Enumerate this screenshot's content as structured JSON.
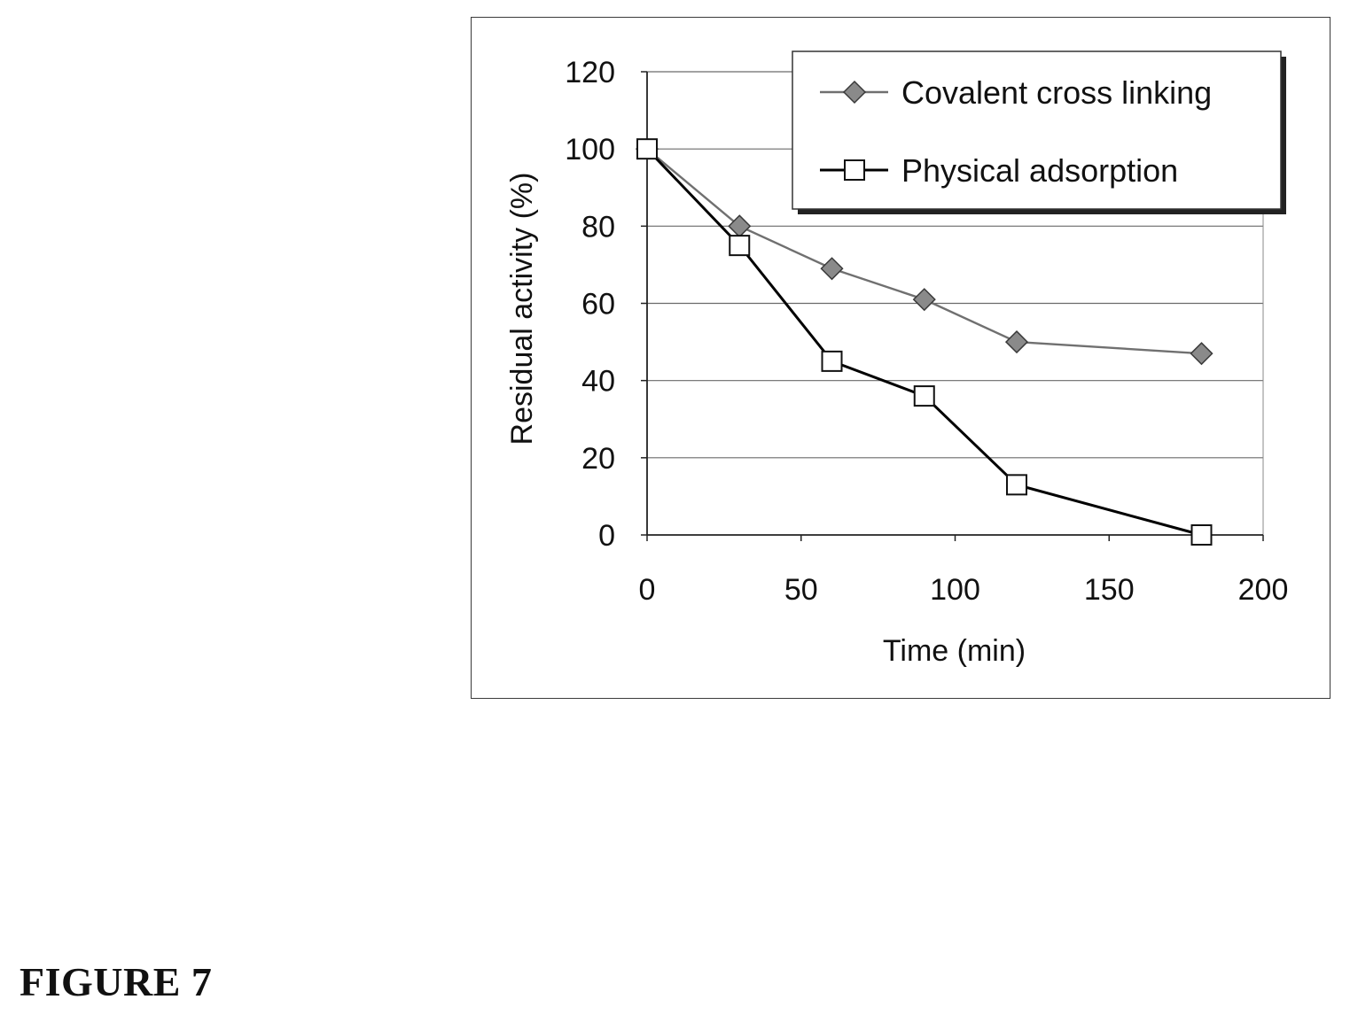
{
  "figure_caption": "FIGURE 7",
  "chart_data": {
    "type": "line",
    "title": "",
    "xlabel": "Time (min)",
    "ylabel": "Residual activity (%)",
    "xlim": [
      0,
      200
    ],
    "ylim": [
      0,
      120
    ],
    "xticks": [
      0,
      50,
      100,
      150,
      200
    ],
    "yticks": [
      0,
      20,
      40,
      60,
      80,
      100,
      120
    ],
    "grid": "horizontal",
    "legend_position": "top-right",
    "series": [
      {
        "name": "Covalent cross linking",
        "marker": "diamond",
        "color": "#707070",
        "x": [
          0,
          30,
          60,
          90,
          120,
          180
        ],
        "y": [
          100,
          80,
          69,
          61,
          50,
          47
        ]
      },
      {
        "name": "Physical adsorption",
        "marker": "square",
        "color": "#000000",
        "x": [
          0,
          30,
          60,
          90,
          120,
          180
        ],
        "y": [
          100,
          75,
          45,
          36,
          13,
          0
        ]
      }
    ]
  }
}
